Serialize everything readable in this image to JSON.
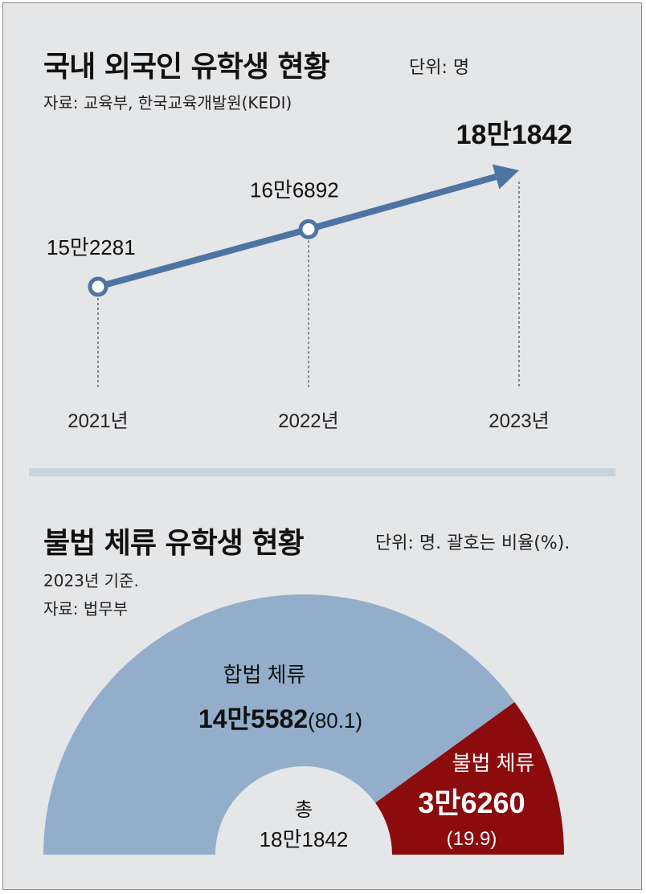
{
  "top": {
    "title": "국내 외국인 유학생 현황",
    "unit": "단위: 명",
    "source": "자료: 교육부, 한국교육개발원(KEDI)"
  },
  "bottom": {
    "title": "불법 체류 유학생 현황",
    "unit": "단위: 명. 괄호는 비율(%).",
    "basis": "2023년 기준.",
    "source": "자료: 법무부"
  },
  "chart_data": [
    {
      "type": "line",
      "categories": [
        "2021년",
        "2022년",
        "2023년"
      ],
      "values": [
        152281,
        166892,
        181842
      ],
      "value_labels": [
        "15만2281",
        "16만6892",
        "18만1842"
      ],
      "colors": {
        "line": "#4e74a3",
        "marker_fill": "#ffffff"
      }
    },
    {
      "type": "pie",
      "style": "half-donut",
      "slices": [
        {
          "label": "합법 체류",
          "value": 145582,
          "value_label": "14만5582",
          "pct_label": "(80.1)",
          "color": "#93aecb"
        },
        {
          "label": "불법 체류",
          "value": 36260,
          "value_label": "3만6260",
          "pct_label": "(19.9)",
          "color": "#8c0b0d"
        }
      ],
      "center_label": "총",
      "center_value": "18만1842"
    }
  ]
}
